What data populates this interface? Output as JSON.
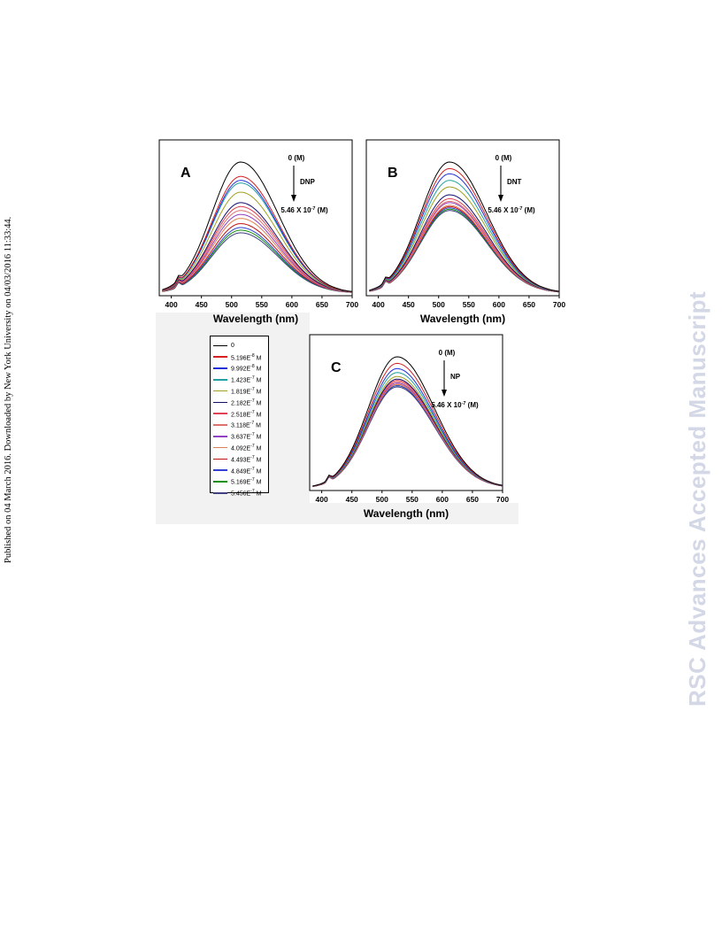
{
  "page": {
    "side_note": "Published on 04 March 2016. Downloaded by New York University on 04/03/2016 11:33:44.",
    "watermark": "RSC Advances Accepted Manuscript"
  },
  "legend": {
    "entries": [
      {
        "label": "0",
        "color": "#000000"
      },
      {
        "label": "5.196E-8 M",
        "color": "#d62020"
      },
      {
        "label": "9.992E-8 M",
        "color": "#2030d8"
      },
      {
        "label": "1.423E-7 M",
        "color": "#20a0a0"
      },
      {
        "label": "1.819E-7 M",
        "color": "#a0a020"
      },
      {
        "label": "2.182E-7 M",
        "color": "#101070"
      },
      {
        "label": "2.518E-7 M",
        "color": "#e04050"
      },
      {
        "label": "3.118E-7 M",
        "color": "#e07070"
      },
      {
        "label": "3.637E-7 M",
        "color": "#9040c0"
      },
      {
        "label": "4.092E-7 M",
        "color": "#e08050"
      },
      {
        "label": "4.493E-7 M",
        "color": "#c01010"
      },
      {
        "label": "4.849E-7 M",
        "color": "#3040d0"
      },
      {
        "label": "5.169E-7 M",
        "color": "#109010"
      },
      {
        "label": "5.456E-7 M",
        "color": "#404080"
      }
    ]
  },
  "chart_data": [
    {
      "type": "line",
      "panel": "A",
      "analyte": "DNP",
      "arrow_top": "0 (M)",
      "arrow_bottom": "5.46 X 10-7 (M)",
      "xlabel": "Wavelength (nm)",
      "ylabel": "",
      "xlim": [
        380,
        700
      ],
      "xticks": [
        400,
        450,
        500,
        550,
        600,
        650,
        700
      ],
      "peak_x": 515,
      "peaks": [
        1.0,
        0.89,
        0.86,
        0.84,
        0.77,
        0.69,
        0.66,
        0.63,
        0.6,
        0.57,
        0.53,
        0.5,
        0.48,
        0.46
      ]
    },
    {
      "type": "line",
      "panel": "B",
      "analyte": "DNT",
      "arrow_top": "0 (M)",
      "arrow_bottom": "5.46 X 10-7 (M)",
      "xlabel": "Wavelength (nm)",
      "ylabel": "",
      "xlim": [
        380,
        700
      ],
      "xticks": [
        400,
        450,
        500,
        550,
        600,
        650,
        700
      ],
      "peak_x": 518,
      "peaks": [
        1.0,
        0.95,
        0.91,
        0.86,
        0.81,
        0.75,
        0.72,
        0.7,
        0.69,
        0.67,
        0.66,
        0.65,
        0.64,
        0.63
      ]
    },
    {
      "type": "line",
      "panel": "C",
      "analyte": "NP",
      "arrow_top": "0 (M)",
      "arrow_bottom": "5.46 X 10-7 (M)",
      "xlabel": "Wavelength (nm)",
      "ylabel": "",
      "xlim": [
        380,
        700
      ],
      "xticks": [
        400,
        450,
        500,
        550,
        600,
        650,
        700
      ],
      "peak_x": 525,
      "peaks": [
        1.0,
        0.95,
        0.91,
        0.88,
        0.85,
        0.83,
        0.82,
        0.81,
        0.8,
        0.79,
        0.79,
        0.78,
        0.78,
        0.77
      ]
    }
  ]
}
